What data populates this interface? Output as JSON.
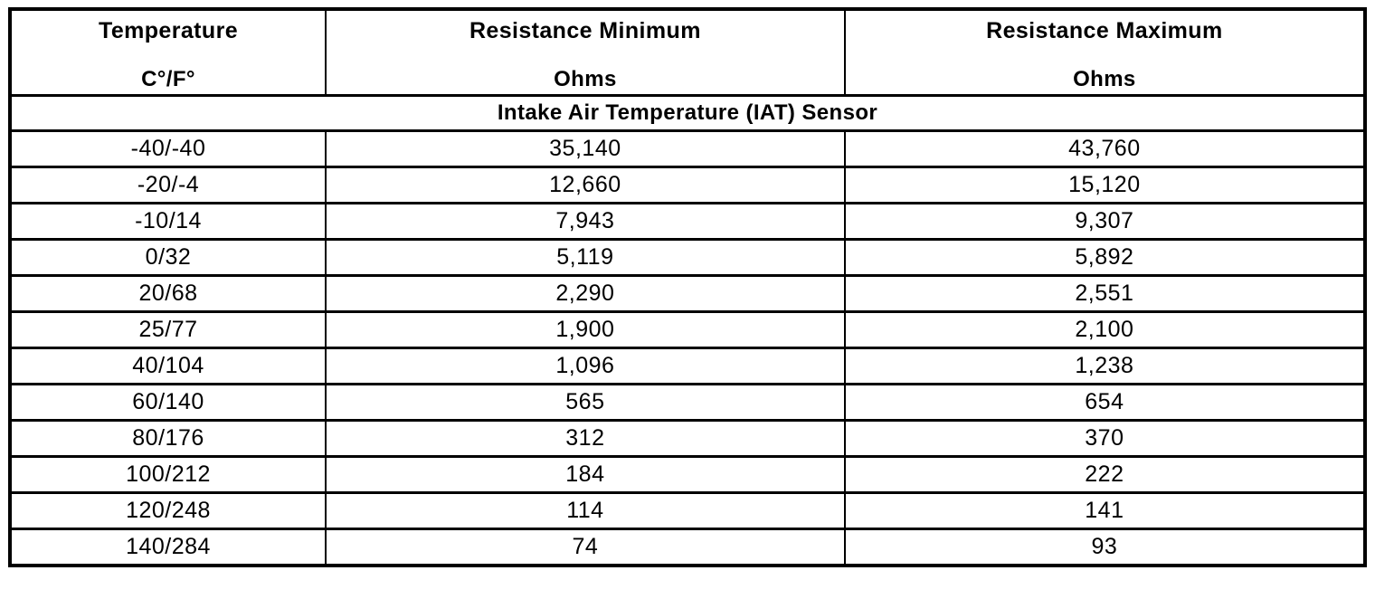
{
  "table": {
    "columns": [
      {
        "title": "Temperature",
        "subtitle": "C°/F°"
      },
      {
        "title": "Resistance Minimum",
        "subtitle": "Ohms"
      },
      {
        "title": "Resistance Maximum",
        "subtitle": "Ohms"
      }
    ],
    "section_title": "Intake Air Temperature (IAT) Sensor",
    "rows": [
      [
        "-40/-40",
        "35,140",
        "43,760"
      ],
      [
        "-20/-4",
        "12,660",
        "15,120"
      ],
      [
        "-10/14",
        "7,943",
        "9,307"
      ],
      [
        "0/32",
        "5,119",
        "5,892"
      ],
      [
        "20/68",
        "2,290",
        "2,551"
      ],
      [
        "25/77",
        "1,900",
        "2,100"
      ],
      [
        "40/104",
        "1,096",
        "1,238"
      ],
      [
        "60/140",
        "565",
        "654"
      ],
      [
        "80/176",
        "312",
        "370"
      ],
      [
        "100/212",
        "184",
        "222"
      ],
      [
        "120/248",
        "114",
        "141"
      ],
      [
        "140/284",
        "74",
        "93"
      ]
    ]
  },
  "chart_data": {
    "type": "table",
    "title": "Intake Air Temperature (IAT) Sensor",
    "columns": [
      "Temperature C°/F°",
      "Resistance Minimum Ohms",
      "Resistance Maximum Ohms"
    ],
    "rows": [
      [
        "-40/-40",
        35140,
        43760
      ],
      [
        "-20/-4",
        12660,
        15120
      ],
      [
        "-10/14",
        7943,
        9307
      ],
      [
        "0/32",
        5119,
        5892
      ],
      [
        "20/68",
        2290,
        2551
      ],
      [
        "25/77",
        1900,
        2100
      ],
      [
        "40/104",
        1096,
        1238
      ],
      [
        "60/140",
        565,
        654
      ],
      [
        "80/176",
        312,
        370
      ],
      [
        "100/212",
        184,
        222
      ],
      [
        "120/248",
        114,
        141
      ],
      [
        "140/284",
        74,
        93
      ]
    ]
  }
}
